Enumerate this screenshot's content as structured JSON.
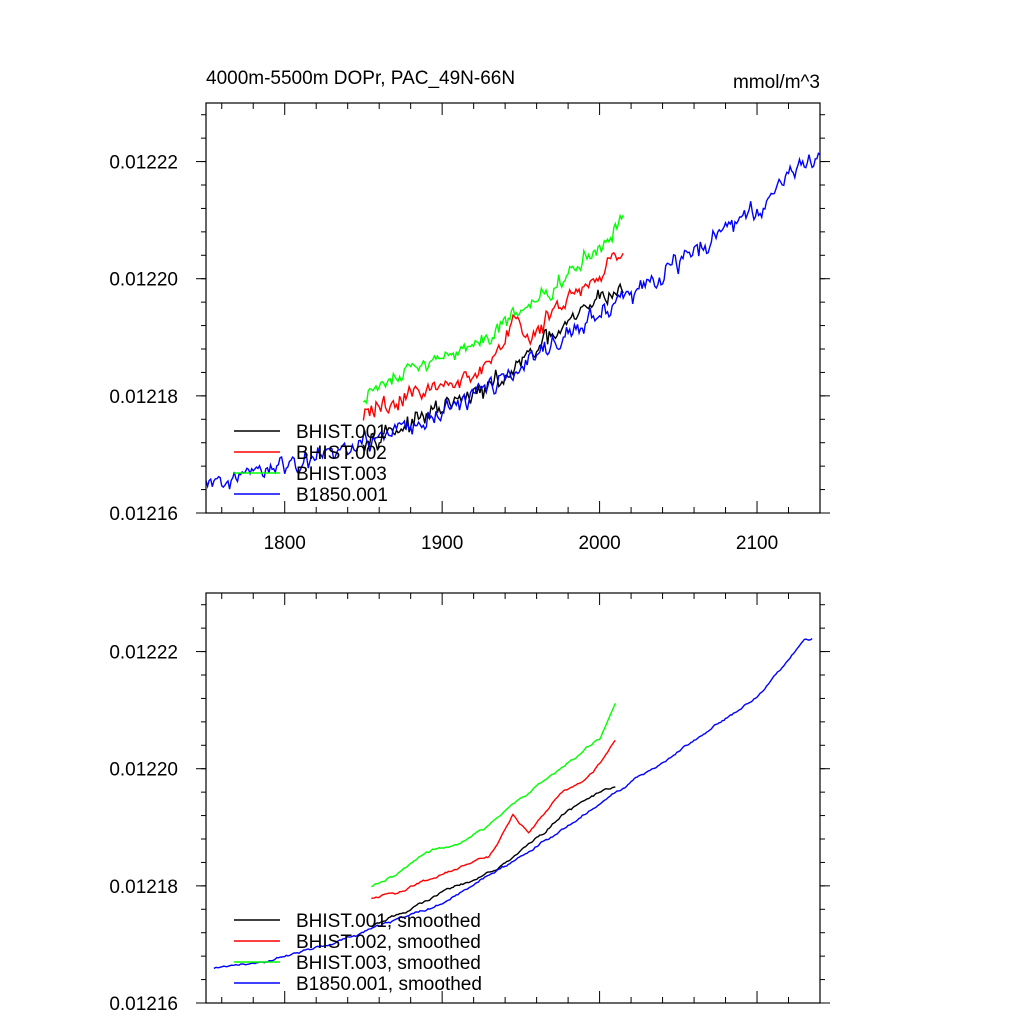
{
  "chart_data": [
    {
      "type": "line",
      "title": "4000m-5500m DOPr, PAC_49N-66N",
      "units": "mmol/m^3",
      "xlim": [
        1750,
        2140
      ],
      "ylim": [
        0.01216,
        0.01223
      ],
      "xticks": [
        1800,
        1900,
        2000,
        2100
      ],
      "xtick_labels": [
        "1800",
        "1900",
        "2000",
        "2100"
      ],
      "yticks": [
        0.01216,
        0.01218,
        0.0122,
        0.01222
      ],
      "ytick_labels": [
        "0.01216",
        "0.01218",
        "0.01220",
        "0.01222"
      ],
      "legend_position": "bottom-left",
      "series": [
        {
          "name": "BHIST.001",
          "color": "#000000",
          "smoothed": false,
          "noise": 2.2e-06,
          "anchors": [
            [
              1850,
              0.012173
            ],
            [
              1880,
              0.012175
            ],
            [
              1900,
              0.012178
            ],
            [
              1920,
              0.01218
            ],
            [
              1940,
              0.012183
            ],
            [
              1960,
              0.012188
            ],
            [
              1980,
              0.012192
            ],
            [
              2000,
              0.012197
            ],
            [
              2015,
              0.012198
            ]
          ]
        },
        {
          "name": "BHIST.002",
          "color": "#ff0000",
          "smoothed": false,
          "noise": 2.2e-06,
          "anchors": [
            [
              1850,
              0.012177
            ],
            [
              1870,
              0.012179
            ],
            [
              1890,
              0.012181
            ],
            [
              1910,
              0.012183
            ],
            [
              1930,
              0.012185
            ],
            [
              1945,
              0.012193
            ],
            [
              1955,
              0.012189
            ],
            [
              1975,
              0.012196
            ],
            [
              1990,
              0.012199
            ],
            [
              2000,
              0.0122
            ],
            [
              2015,
              0.012205
            ]
          ]
        },
        {
          "name": "BHIST.003",
          "color": "#00ff00",
          "smoothed": false,
          "noise": 2.2e-06,
          "anchors": [
            [
              1850,
              0.01218
            ],
            [
              1870,
              0.012183
            ],
            [
              1890,
              0.012186
            ],
            [
              1910,
              0.012187
            ],
            [
              1930,
              0.01219
            ],
            [
              1950,
              0.012195
            ],
            [
              1970,
              0.012198
            ],
            [
              1990,
              0.012203
            ],
            [
              2000,
              0.012205
            ],
            [
              2015,
              0.012211
            ]
          ]
        },
        {
          "name": "B1850.001",
          "color": "#0000ff",
          "smoothed": false,
          "noise": 2.4e-06,
          "anchors": [
            [
              1750,
              0.012165
            ],
            [
              1800,
              0.012168
            ],
            [
              1850,
              0.012172
            ],
            [
              1900,
              0.012177
            ],
            [
              1950,
              0.012185
            ],
            [
              2000,
              0.012194
            ],
            [
              2050,
              0.012203
            ],
            [
              2100,
              0.012212
            ],
            [
              2125,
              0.012219
            ],
            [
              2140,
              0.012221
            ]
          ]
        }
      ]
    },
    {
      "type": "line",
      "title": "",
      "units": "",
      "xlim": [
        1750,
        2140
      ],
      "ylim": [
        0.01216,
        0.01223
      ],
      "xticks": [
        1800,
        1900,
        2000,
        2100
      ],
      "xtick_labels": [],
      "yticks": [
        0.01216,
        0.01218,
        0.0122,
        0.01222
      ],
      "ytick_labels": [
        "0.01216",
        "0.01218",
        "0.01220",
        "0.01222"
      ],
      "legend_position": "bottom-left",
      "series": [
        {
          "name": "BHIST.001, smoothed",
          "color": "#000000",
          "smoothed": true,
          "noise": 6e-07,
          "anchors": [
            [
              1855,
              0.012173
            ],
            [
              1880,
              0.012176
            ],
            [
              1900,
              0.012179
            ],
            [
              1920,
              0.012181
            ],
            [
              1940,
              0.012184
            ],
            [
              1960,
              0.012188
            ],
            [
              1980,
              0.012193
            ],
            [
              2000,
              0.012196
            ],
            [
              2010,
              0.012197
            ]
          ]
        },
        {
          "name": "BHIST.002, smoothed",
          "color": "#ff0000",
          "smoothed": true,
          "noise": 6e-07,
          "anchors": [
            [
              1855,
              0.012178
            ],
            [
              1870,
              0.012179
            ],
            [
              1890,
              0.012181
            ],
            [
              1910,
              0.012183
            ],
            [
              1930,
              0.012185
            ],
            [
              1945,
              0.012192
            ],
            [
              1955,
              0.012189
            ],
            [
              1975,
              0.012196
            ],
            [
              1990,
              0.012198
            ],
            [
              2000,
              0.012201
            ],
            [
              2010,
              0.012205
            ]
          ]
        },
        {
          "name": "BHIST.003, smoothed",
          "color": "#00ff00",
          "smoothed": true,
          "noise": 6e-07,
          "anchors": [
            [
              1855,
              0.01218
            ],
            [
              1870,
              0.012182
            ],
            [
              1890,
              0.012186
            ],
            [
              1910,
              0.012187
            ],
            [
              1930,
              0.01219
            ],
            [
              1950,
              0.012195
            ],
            [
              1970,
              0.012199
            ],
            [
              1990,
              0.012203
            ],
            [
              2000,
              0.012205
            ],
            [
              2010,
              0.012211
            ]
          ]
        },
        {
          "name": "B1850.001, smoothed",
          "color": "#0000ff",
          "smoothed": true,
          "noise": 6e-07,
          "anchors": [
            [
              1755,
              0.012166
            ],
            [
              1800,
              0.012168
            ],
            [
              1850,
              0.012172
            ],
            [
              1900,
              0.012177
            ],
            [
              1950,
              0.012185
            ],
            [
              2000,
              0.012194
            ],
            [
              2050,
              0.012203
            ],
            [
              2100,
              0.012212
            ],
            [
              2130,
              0.012222
            ],
            [
              2135,
              0.012222
            ]
          ]
        }
      ]
    }
  ]
}
